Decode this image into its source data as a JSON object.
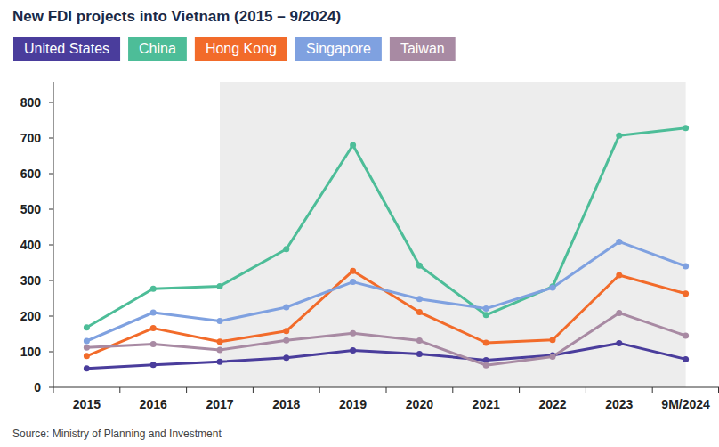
{
  "chart_data": {
    "type": "line",
    "title": "New FDI projects into Vietnam (2015 – 9/2024)",
    "source": "Source: Ministry of Planning and Investment",
    "categories": [
      "2015",
      "2016",
      "2017",
      "2018",
      "2019",
      "2020",
      "2021",
      "2022",
      "2023",
      "9M/2024"
    ],
    "highlight": {
      "from": "2017",
      "to": "9M/2024"
    },
    "series": [
      {
        "name": "United States",
        "color": "#4a3d9c",
        "marker": "circle",
        "values": [
          53,
          63,
          72,
          83,
          104,
          94,
          76,
          90,
          124,
          79
        ]
      },
      {
        "name": "China",
        "color": "#4dbd98",
        "marker": "circle",
        "values": [
          168,
          277,
          284,
          388,
          680,
          342,
          203,
          283,
          707,
          728
        ]
      },
      {
        "name": "Hong Kong",
        "color": "#f26b2a",
        "marker": "circle",
        "values": [
          88,
          166,
          128,
          158,
          327,
          211,
          125,
          133,
          315,
          263
        ]
      },
      {
        "name": "Singapore",
        "color": "#7fa1e0",
        "marker": "circle",
        "values": [
          130,
          210,
          186,
          225,
          296,
          248,
          221,
          280,
          409,
          340
        ]
      },
      {
        "name": "Taiwan",
        "color": "#a88aa3",
        "marker": "circle",
        "values": [
          112,
          121,
          105,
          132,
          152,
          131,
          62,
          86,
          209,
          145
        ]
      }
    ],
    "ylim": [
      0,
      800
    ],
    "yticks": [
      0,
      100,
      200,
      300,
      400,
      500,
      600,
      700,
      800
    ],
    "grid": false,
    "legend": "top"
  }
}
